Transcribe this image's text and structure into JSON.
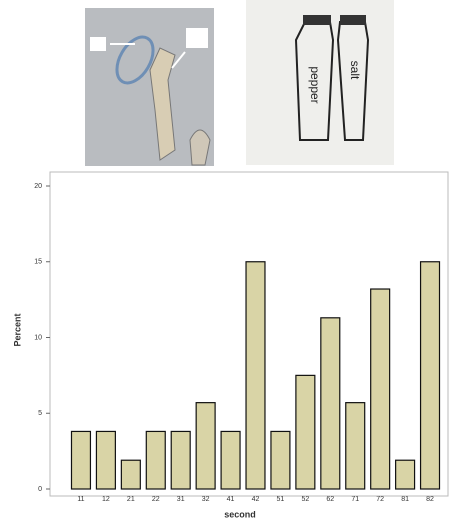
{
  "photos": {
    "bottle_left": "pepper",
    "bottle_right": "salt"
  },
  "chart_data": {
    "type": "bar",
    "x_label": "second",
    "y_label": "Percent",
    "categories": [
      "11",
      "12",
      "21",
      "22",
      "31",
      "32",
      "41",
      "42",
      "51",
      "52",
      "62",
      "71",
      "72",
      "81",
      "82"
    ],
    "values": [
      3.8,
      3.8,
      1.9,
      3.8,
      3.8,
      5.7,
      3.8,
      15.0,
      3.8,
      7.5,
      11.3,
      5.7,
      13.2,
      1.9,
      15.0
    ],
    "color": "#d9d4a6",
    "ylim": [
      0,
      20
    ],
    "yticks": [
      0,
      5,
      10,
      15,
      20
    ],
    "grid": false
  }
}
